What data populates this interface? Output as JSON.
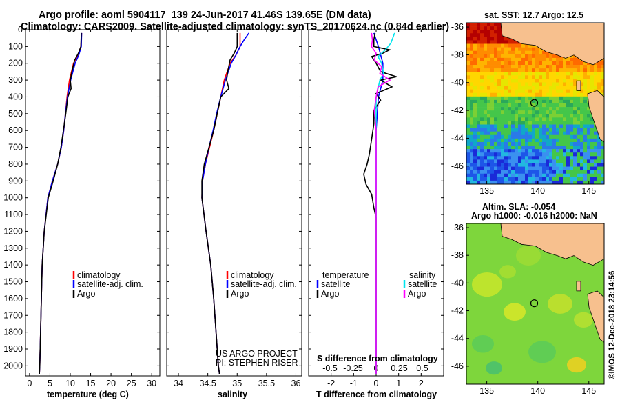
{
  "title_line1": "Argo profile: aoml 5904117_139 24-Jun-2017 41.46S 139.65E (DM data)",
  "title_line2": "Climatology: CARS2009. Satellite-adjusted climatology: synTS_20170624.nc (0.84d earlier)",
  "colors": {
    "climatology": "#ff0000",
    "satellite": "#0000ff",
    "argo": "#000000",
    "salinity_satellite": "#00e5ee",
    "salinity_argo": "#ff00ff",
    "land": "#f7c08e"
  },
  "chart_data": [
    {
      "type": "line",
      "id": "temperature",
      "xlabel": "temperature (deg C)",
      "ylabel": "",
      "xlim": [
        -1,
        32
      ],
      "ylim": [
        2060,
        0
      ],
      "xticks": [
        "0",
        "5",
        "10",
        "15",
        "20",
        "25",
        "30"
      ],
      "xtick_values": [
        0,
        5,
        10,
        15,
        20,
        25,
        30
      ],
      "yticks": [
        "0",
        "100",
        "200",
        "300",
        "400",
        "500",
        "600",
        "700",
        "800",
        "900",
        "1000",
        "1100",
        "1200",
        "1300",
        "1400",
        "1500",
        "1600",
        "1700",
        "1800",
        "1900",
        "2000"
      ],
      "ytick_values": [
        0,
        100,
        200,
        300,
        400,
        500,
        600,
        700,
        800,
        900,
        1000,
        1100,
        1200,
        1300,
        1400,
        1500,
        1600,
        1700,
        1800,
        1900,
        2000
      ],
      "legend": [
        "climatology",
        "satellite-adj. clim.",
        "Argo"
      ],
      "series": [
        {
          "name": "climatology",
          "depth": [
            20,
            100,
            150,
            200,
            300,
            400,
            500,
            600,
            700,
            800,
            900,
            1000,
            1200,
            1400,
            1600,
            1800,
            2000,
            2050
          ],
          "values": [
            12.8,
            12.6,
            11.9,
            10.8,
            9.8,
            9.2,
            8.8,
            8.4,
            7.8,
            6.9,
            5.6,
            4.5,
            3.6,
            3.1,
            2.9,
            2.7,
            2.5,
            2.4
          ]
        },
        {
          "name": "satellite-adj. clim.",
          "depth": [
            20,
            100,
            150,
            200,
            300,
            400,
            500,
            600,
            700,
            800,
            900,
            1000,
            1200,
            1400,
            1600,
            1800,
            2000,
            2050
          ],
          "values": [
            12.8,
            12.7,
            12.1,
            11.2,
            10.1,
            9.3,
            8.8,
            8.4,
            7.8,
            6.9,
            5.6,
            4.5,
            3.6,
            3.1,
            2.9,
            2.7,
            2.5,
            2.4
          ]
        },
        {
          "name": "Argo",
          "depth": [
            20,
            100,
            140,
            180,
            250,
            300,
            350,
            400,
            500,
            600,
            700,
            800,
            900,
            1000,
            1200,
            1400,
            1600,
            1800,
            2000,
            2050
          ],
          "values": [
            12.7,
            12.6,
            12.0,
            11.1,
            10.4,
            10.0,
            10.2,
            9.4,
            8.9,
            8.3,
            7.7,
            6.9,
            5.8,
            4.6,
            3.6,
            3.1,
            2.9,
            2.7,
            2.5,
            2.4
          ]
        }
      ]
    },
    {
      "type": "line",
      "id": "salinity",
      "xlabel": "salinity",
      "ylabel": "",
      "xlim": [
        33.8,
        36.1
      ],
      "ylim": [
        2060,
        0
      ],
      "xticks": [
        "34",
        "34.5",
        "35",
        "35.5",
        "36"
      ],
      "xtick_values": [
        34,
        34.5,
        35,
        35.5,
        36
      ],
      "legend": [
        "climatology",
        "satellite-adj. clim.",
        "Argo"
      ],
      "annotation": [
        "US ARGO PROJECT",
        "PI: STEPHEN RISER"
      ],
      "series": [
        {
          "name": "climatology",
          "depth": [
            20,
            100,
            150,
            200,
            300,
            400,
            500,
            600,
            700,
            800,
            900,
            1000,
            1200,
            1400,
            1600,
            1800,
            2000,
            2050
          ],
          "values": [
            35.05,
            35.05,
            34.98,
            34.88,
            34.78,
            34.72,
            34.66,
            34.6,
            34.53,
            34.46,
            34.41,
            34.4,
            34.47,
            34.55,
            34.6,
            34.64,
            34.68,
            34.7
          ]
        },
        {
          "name": "satellite-adj. clim.",
          "depth": [
            20,
            60,
            100,
            150,
            200,
            300,
            400,
            500,
            600,
            700,
            800,
            900,
            1000,
            1200,
            1400,
            1600,
            1800,
            2000,
            2050
          ],
          "values": [
            35.2,
            35.12,
            35.05,
            34.98,
            34.9,
            34.8,
            34.72,
            34.65,
            34.59,
            34.52,
            34.46,
            34.41,
            34.4,
            34.47,
            34.55,
            34.6,
            34.64,
            34.68,
            34.7
          ]
        },
        {
          "name": "Argo",
          "depth": [
            20,
            100,
            140,
            180,
            250,
            300,
            350,
            400,
            500,
            600,
            700,
            800,
            900,
            1000,
            1200,
            1400,
            1600,
            1800,
            2000,
            2050
          ],
          "values": [
            35.0,
            35.0,
            34.95,
            34.88,
            34.84,
            34.82,
            34.86,
            34.72,
            34.66,
            34.6,
            34.52,
            34.44,
            34.4,
            34.4,
            34.47,
            34.55,
            34.6,
            34.64,
            34.68,
            34.7
          ]
        }
      ]
    },
    {
      "type": "line",
      "id": "difference",
      "xlabel": "T difference from climatology",
      "xlabel2": "S difference from climatology",
      "xlim": [
        -3,
        3
      ],
      "ylim": [
        2060,
        0
      ],
      "xticks": [
        "-2",
        "-1",
        "0",
        "1",
        "2"
      ],
      "xtick_values": [
        -2,
        -1,
        0,
        1,
        2
      ],
      "sticks": [
        "-0.5",
        "-0.25",
        "0",
        "0.25",
        "0.5"
      ],
      "legend_temperature": [
        "temperature",
        "satellite",
        "Argo"
      ],
      "legend_salinity": [
        "salinity",
        "satellite",
        "Argo"
      ],
      "series": [
        {
          "name": "T satellite",
          "depth": [
            20,
            60,
            100,
            150,
            200,
            300,
            400,
            600,
            1000,
            1500,
            2050
          ],
          "values": [
            -0.1,
            0.0,
            0.1,
            0.2,
            0.3,
            0.3,
            0.1,
            0.0,
            0.0,
            0.0,
            0.0
          ]
        },
        {
          "name": "T Argo",
          "depth": [
            20,
            60,
            100,
            120,
            140,
            160,
            200,
            250,
            280,
            300,
            340,
            380,
            420,
            480,
            560,
            650,
            740,
            800,
            860,
            920,
            980,
            1060,
            1120,
            1200,
            1500,
            2050
          ],
          "values": [
            -0.05,
            -0.1,
            -0.1,
            0.6,
            0.3,
            -0.2,
            0.0,
            0.2,
            0.9,
            0.2,
            0.7,
            0.0,
            0.2,
            -0.1,
            -0.1,
            -0.2,
            -0.3,
            -0.4,
            -0.55,
            -0.45,
            -0.2,
            -0.1,
            0.0,
            0.0,
            0.0,
            0.0
          ]
        },
        {
          "name": "S satellite",
          "depth": [
            20,
            80,
            120,
            160,
            200,
            260,
            300,
            400,
            500,
            700,
            1000,
            1500,
            2050
          ],
          "values": [
            0.2,
            0.16,
            0.1,
            0.02,
            0.06,
            0.08,
            0.04,
            0.0,
            0.0,
            0.0,
            0.0,
            0.0,
            0.0
          ]
        },
        {
          "name": "S Argo",
          "depth": [
            20,
            60,
            100,
            140,
            180,
            220,
            260,
            300,
            340,
            400,
            480,
            600,
            800,
            1000,
            1500,
            2050
          ],
          "values": [
            -0.05,
            -0.04,
            -0.05,
            0.0,
            -0.02,
            0.06,
            0.04,
            0.15,
            0.02,
            0.0,
            -0.02,
            0.0,
            0.0,
            0.0,
            0.0,
            0.0
          ]
        }
      ]
    },
    {
      "type": "heatmap",
      "id": "sst-map",
      "title": "sat. SST: 12.7 Argo: 12.5",
      "xlim": [
        133,
        146.5
      ],
      "ylim": [
        -47.3,
        -35.7
      ],
      "xticks": [
        "135",
        "140",
        "145"
      ],
      "xtick_values": [
        135,
        140,
        145
      ],
      "yticks": [
        "-36",
        "-38",
        "-40",
        "-42",
        "-44",
        "-46"
      ],
      "ytick_values": [
        -36,
        -38,
        -40,
        -42,
        -44,
        -46
      ],
      "argo_position": {
        "lon": 139.65,
        "lat": -41.46
      }
    },
    {
      "type": "heatmap",
      "id": "sla-map",
      "title": "Altim. SLA: -0.054",
      "subtitle": "Argo h1000: -0.016 h2000: NaN",
      "credit": "©IMOS 12-Dec-2018 23:14:56",
      "xlim": [
        133,
        146.5
      ],
      "ylim": [
        -47.3,
        -35.7
      ],
      "xticks": [
        "135",
        "140",
        "145"
      ],
      "xtick_values": [
        135,
        140,
        145
      ],
      "yticks": [
        "-36",
        "-38",
        "-40",
        "-42",
        "-44",
        "-46"
      ],
      "ytick_values": [
        -36,
        -38,
        -40,
        -42,
        -44,
        -46
      ],
      "argo_position": {
        "lon": 139.65,
        "lat": -41.46
      }
    }
  ]
}
